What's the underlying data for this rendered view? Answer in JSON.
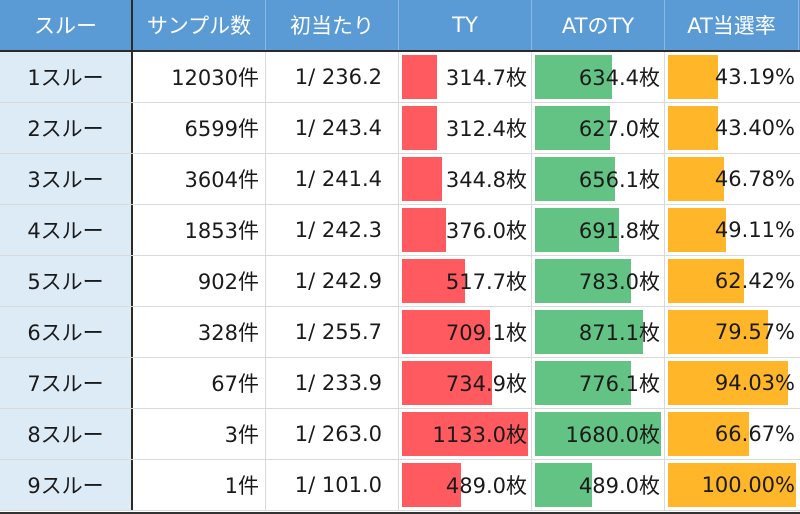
{
  "header": {
    "col0": "スルー",
    "col1": "サンプル数",
    "col2": "初当たり",
    "col3": "TY",
    "col4": "ATのTY",
    "col5": "AT当選率"
  },
  "colors": {
    "header_bg": "#5b9bd5",
    "first_col_bg": "#ddebf7",
    "ty_bar": "#ff5a5f",
    "at_ty_bar": "#63c384",
    "at_rate_bar": "#ffb628"
  },
  "rows": [
    {
      "through": "1スルー",
      "samples": "12030件",
      "first_hit": "1/ 236.2",
      "ty": "314.7枚",
      "at_ty": "634.4枚",
      "at_rate": "43.19%",
      "ty_bar": "31%",
      "at_ty_bar": "63%",
      "at_rate_bar": "42%"
    },
    {
      "through": "2スルー",
      "samples": "6599件",
      "first_hit": "1/ 243.4",
      "ty": "312.4枚",
      "at_ty": "627.0枚",
      "at_rate": "43.40%",
      "ty_bar": "31%",
      "at_ty_bar": "61%",
      "at_rate_bar": "42%"
    },
    {
      "through": "3スルー",
      "samples": "3604件",
      "first_hit": "1/ 241.4",
      "ty": "344.8枚",
      "at_ty": "656.1枚",
      "at_rate": "46.78%",
      "ty_bar": "35%",
      "at_ty_bar": "65%",
      "at_rate_bar": "46%"
    },
    {
      "through": "4スルー",
      "samples": "1853件",
      "first_hit": "1/ 242.3",
      "ty": "376.0枚",
      "at_ty": "691.8枚",
      "at_rate": "49.11%",
      "ty_bar": "38%",
      "at_ty_bar": "68%",
      "at_rate_bar": "48%"
    },
    {
      "through": "5スルー",
      "samples": "902件",
      "first_hit": "1/ 242.9",
      "ty": "517.7枚",
      "at_ty": "783.0枚",
      "at_rate": "62.42%",
      "ty_bar": "52%",
      "at_ty_bar": "77%",
      "at_rate_bar": "61%"
    },
    {
      "through": "6スルー",
      "samples": "328件",
      "first_hit": "1/ 255.7",
      "ty": "709.1枚",
      "at_ty": "871.1枚",
      "at_rate": "79.57%",
      "ty_bar": "71%",
      "at_ty_bar": "86%",
      "at_rate_bar": "79%"
    },
    {
      "through": "7スルー",
      "samples": "67件",
      "first_hit": "1/ 233.9",
      "ty": "734.9枚",
      "at_ty": "776.1枚",
      "at_rate": "94.03%",
      "ty_bar": "73%",
      "at_ty_bar": "77%",
      "at_rate_bar": "94%"
    },
    {
      "through": "8スルー",
      "samples": "3件",
      "first_hit": "1/ 263.0",
      "ty": "1133.0枚",
      "at_ty": "1680.0枚",
      "at_rate": "66.67%",
      "ty_bar": "100%",
      "at_ty_bar": "100%",
      "at_rate_bar": "65%"
    },
    {
      "through": "9スルー",
      "samples": "1件",
      "first_hit": "1/ 101.0",
      "ty": "489.0枚",
      "at_ty": "489.0枚",
      "at_rate": "100.00%",
      "ty_bar": "49%",
      "at_ty_bar": "48%",
      "at_rate_bar": "100%"
    }
  ]
}
